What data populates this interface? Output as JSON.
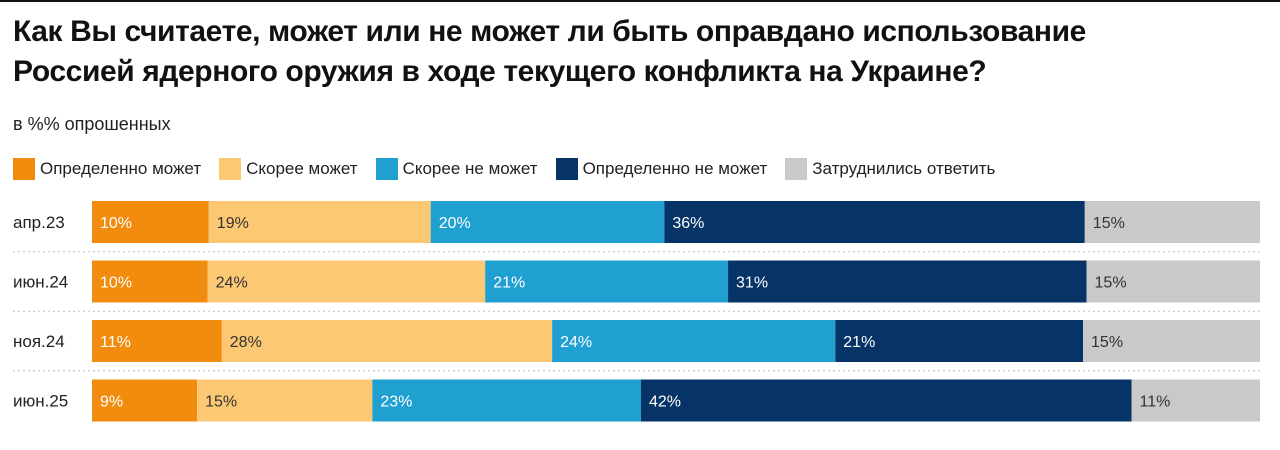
{
  "title": "Как Вы считаете, может или не может ли быть оправдано использование\nРоссией ядерного оружия в ходе текущего конфликта на Украине?",
  "subtitle": "в %% опрошенных",
  "chart_data": {
    "type": "bar",
    "orientation": "horizontal",
    "stacked": true,
    "unit": "%",
    "categories": [
      "апр.23",
      "июн.24",
      "ноя.24",
      "июн.25"
    ],
    "series": [
      {
        "name": "Определенно может",
        "color": "#F28C0F",
        "label_color": "#ffffff",
        "values": [
          10,
          10,
          11,
          9
        ]
      },
      {
        "name": "Скорее может",
        "color": "#FCC874",
        "label_color": "#333333",
        "values": [
          19,
          24,
          28,
          15
        ]
      },
      {
        "name": "Скорее не может",
        "color": "#1FA0D0",
        "label_color": "#ffffff",
        "values": [
          20,
          21,
          24,
          23
        ]
      },
      {
        "name": "Определенно не может",
        "color": "#073466",
        "label_color": "#ffffff",
        "values": [
          36,
          31,
          21,
          42
        ]
      },
      {
        "name": "Затруднились ответить",
        "color": "#C9C9C9",
        "label_color": "#333333",
        "values": [
          15,
          15,
          15,
          11
        ]
      }
    ],
    "legend_position": "top-left",
    "grid": false
  }
}
